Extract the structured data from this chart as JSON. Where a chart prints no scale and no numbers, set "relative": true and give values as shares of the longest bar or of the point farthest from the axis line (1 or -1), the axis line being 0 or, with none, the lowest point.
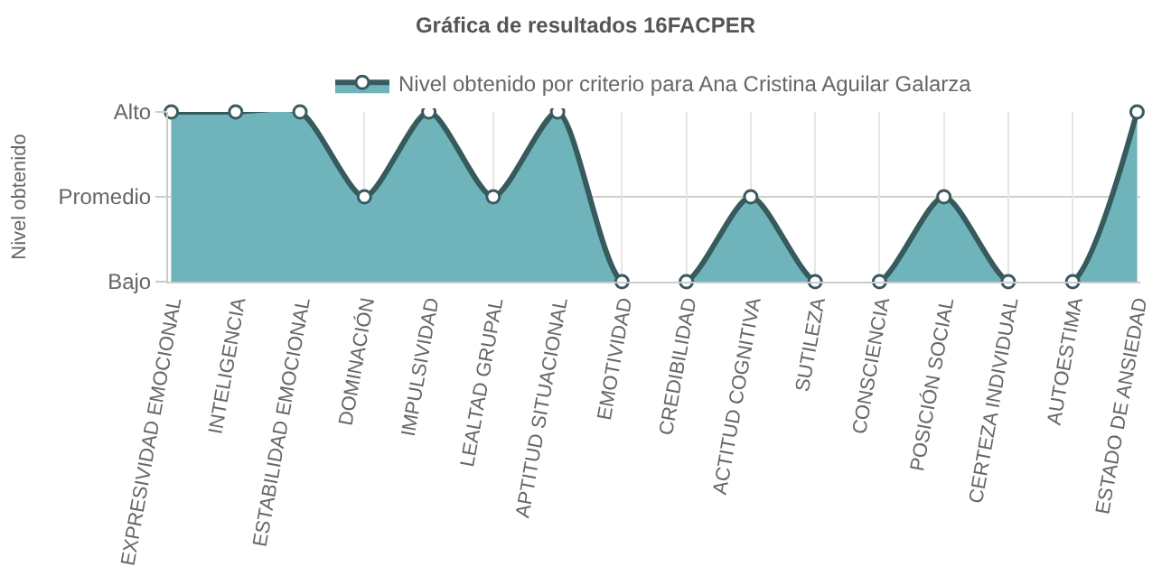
{
  "chart_data": {
    "type": "area",
    "title": "Gráfica de resultados 16FACPER",
    "ylabel": "Nivel obtenido",
    "categories": [
      "EXPRESIVIDAD EMOCIONAL",
      "INTELIGENCIA",
      "ESTABILIDAD EMOCIONAL",
      "DOMINACIÓN",
      "IMPULSIVIDAD",
      "LEALTAD GRUPAL",
      "APTITUD SITUACIONAL",
      "EMOTIVIDAD",
      "CREDIBILIDAD",
      "ACTITUD COGNITIVA",
      "SUTILEZA",
      "CONSCIENCIA",
      "POSICIÓN SOCIAL",
      "CERTEZA INDIVIDUAL",
      "AUTOESTIMA",
      "ESTADO DE ANSIEDAD"
    ],
    "series": [
      {
        "name": "Nivel obtenido por criterio para Ana Cristina Aguilar Galarza",
        "color": "#6fb4ba",
        "values": [
          1,
          1,
          1,
          0.5,
          1,
          0.5,
          1,
          0,
          0,
          0.5,
          0,
          0,
          0.5,
          0,
          0,
          1
        ]
      }
    ],
    "relative": true,
    "y_categories": [
      "Alto",
      "Promedio",
      "Bajo"
    ],
    "ref_lines": [
      {
        "axis": "y",
        "value": 0.5,
        "color": "#cfcfcf"
      }
    ],
    "grid": "x",
    "legend": "top",
    "marker": "circle",
    "line_style": "solid"
  }
}
